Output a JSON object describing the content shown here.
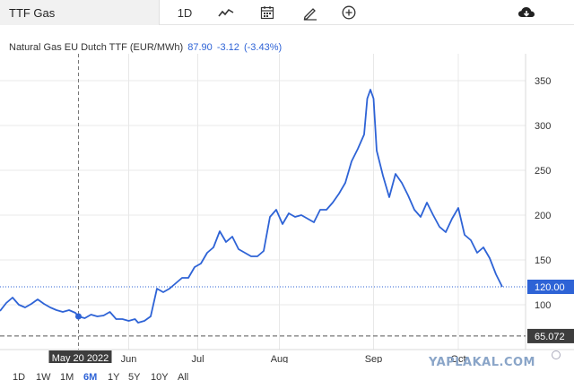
{
  "toolbar": {
    "symbol": "TTF Gas",
    "interval": "1D",
    "icons": [
      "line-chart-icon",
      "calendar-icon",
      "draw-pencil-icon",
      "add-circle-icon",
      "cloud-download-icon"
    ]
  },
  "legend": {
    "name": "Natural Gas EU Dutch TTF (EUR/MWh)",
    "last": "87.90",
    "change": "-3.12",
    "change_pct": "(-3.43%)"
  },
  "ranges": {
    "items": [
      "1D",
      "1W",
      "1M",
      "6M",
      "1Y",
      "5Y",
      "10Y",
      "All"
    ],
    "active": "6M"
  },
  "watermark": "YAPLAKAL.COM",
  "colors": {
    "line": "#2e63d6",
    "grid": "#e8e8e8",
    "label_bg": "#3d3d3d"
  },
  "chart_data": {
    "type": "line",
    "ylim": [
      60,
      360
    ],
    "yticks": [
      100,
      150,
      200,
      250,
      300,
      350
    ],
    "xlim": [
      0,
      165
    ],
    "xticks": [
      {
        "x": 41,
        "label": "Jun"
      },
      {
        "x": 63,
        "label": "Jul"
      },
      {
        "x": 89,
        "label": "Aug"
      },
      {
        "x": 119,
        "label": "Sep"
      },
      {
        "x": 146,
        "label": "Oct"
      }
    ],
    "crosshair": {
      "x": 25,
      "y": 87,
      "label": "May 20 2022"
    },
    "price_lines": [
      {
        "value": 120.0,
        "label": "120.00",
        "style": "dotted"
      },
      {
        "value": 65.072,
        "label": "65.072",
        "style": "dashed"
      }
    ],
    "series": [
      {
        "values": [
          [
            0,
            93
          ],
          [
            2,
            102
          ],
          [
            4,
            108
          ],
          [
            6,
            100
          ],
          [
            8,
            97
          ],
          [
            10,
            101
          ],
          [
            12,
            106
          ],
          [
            14,
            101
          ],
          [
            16,
            97
          ],
          [
            18,
            94
          ],
          [
            20,
            92
          ],
          [
            22,
            94
          ],
          [
            24,
            91
          ],
          [
            25,
            87
          ],
          [
            27,
            85
          ],
          [
            29,
            89
          ],
          [
            31,
            87
          ],
          [
            33,
            88
          ],
          [
            35,
            92
          ],
          [
            37,
            84
          ],
          [
            39,
            84
          ],
          [
            41,
            82
          ],
          [
            43,
            84
          ],
          [
            44,
            80
          ],
          [
            46,
            82
          ],
          [
            48,
            87
          ],
          [
            50,
            118
          ],
          [
            52,
            114
          ],
          [
            54,
            118
          ],
          [
            56,
            124
          ],
          [
            58,
            130
          ],
          [
            60,
            130
          ],
          [
            62,
            142
          ],
          [
            64,
            146
          ],
          [
            66,
            158
          ],
          [
            68,
            164
          ],
          [
            70,
            182
          ],
          [
            72,
            170
          ],
          [
            74,
            176
          ],
          [
            76,
            162
          ],
          [
            78,
            158
          ],
          [
            80,
            154
          ],
          [
            82,
            154
          ],
          [
            84,
            160
          ],
          [
            86,
            198
          ],
          [
            88,
            206
          ],
          [
            90,
            190
          ],
          [
            92,
            202
          ],
          [
            94,
            198
          ],
          [
            96,
            200
          ],
          [
            98,
            196
          ],
          [
            100,
            192
          ],
          [
            102,
            206
          ],
          [
            104,
            206
          ],
          [
            106,
            214
          ],
          [
            108,
            224
          ],
          [
            110,
            236
          ],
          [
            112,
            260
          ],
          [
            114,
            274
          ],
          [
            116,
            290
          ],
          [
            117,
            330
          ],
          [
            118,
            340
          ],
          [
            119,
            330
          ],
          [
            120,
            272
          ],
          [
            122,
            244
          ],
          [
            124,
            220
          ],
          [
            126,
            246
          ],
          [
            128,
            236
          ],
          [
            130,
            222
          ],
          [
            132,
            206
          ],
          [
            134,
            198
          ],
          [
            136,
            214
          ],
          [
            138,
            200
          ],
          [
            140,
            187
          ],
          [
            142,
            181
          ],
          [
            144,
            196
          ],
          [
            146,
            208
          ],
          [
            148,
            178
          ],
          [
            150,
            172
          ],
          [
            152,
            158
          ],
          [
            154,
            164
          ],
          [
            156,
            152
          ],
          [
            158,
            134
          ],
          [
            160,
            120
          ]
        ]
      }
    ]
  }
}
